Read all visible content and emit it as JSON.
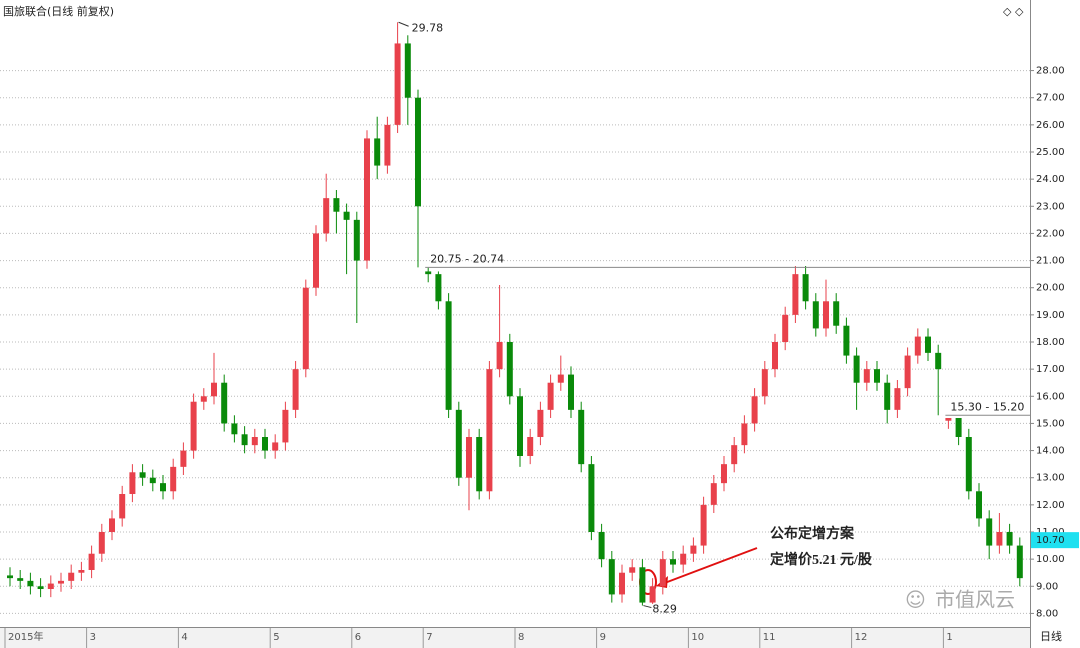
{
  "chart_data": {
    "type": "candlestick",
    "title": "国旅联合(日线 前复权)",
    "categories": [
      "2015年",
      null,
      null,
      null,
      null,
      null,
      null,
      null,
      "3",
      null,
      null,
      null,
      null,
      null,
      null,
      null,
      null,
      "4",
      null,
      null,
      null,
      null,
      null,
      null,
      null,
      null,
      "5",
      null,
      null,
      null,
      null,
      null,
      null,
      null,
      "6",
      null,
      null,
      null,
      null,
      null,
      null,
      "7",
      null,
      null,
      null,
      null,
      null,
      null,
      null,
      null,
      "8",
      null,
      null,
      null,
      null,
      null,
      null,
      null,
      "9",
      null,
      null,
      null,
      null,
      null,
      null,
      null,
      null,
      "10",
      null,
      null,
      null,
      null,
      null,
      null,
      "11",
      null,
      null,
      null,
      null,
      null,
      null,
      null,
      null,
      "12",
      null,
      null,
      null,
      null,
      null,
      null,
      null,
      null,
      "1",
      null,
      null,
      null,
      null,
      null,
      null,
      null
    ],
    "open": [
      9.4,
      9.3,
      9.2,
      9.0,
      8.9,
      9.1,
      9.2,
      9.5,
      9.6,
      10.2,
      11.0,
      11.5,
      12.4,
      13.2,
      13.0,
      12.8,
      12.5,
      13.4,
      14.0,
      15.8,
      16.0,
      16.5,
      15.0,
      14.6,
      14.2,
      14.5,
      14.0,
      14.3,
      15.5,
      17.0,
      20.0,
      22.0,
      23.3,
      22.8,
      22.5,
      21.0,
      25.5,
      24.5,
      26.0,
      29.0,
      27.0,
      20.6,
      20.5,
      19.5,
      15.5,
      13.0,
      14.5,
      12.5,
      17.0,
      18.0,
      16.0,
      13.8,
      14.5,
      15.5,
      16.5,
      16.8,
      15.5,
      13.5,
      11.0,
      10.0,
      8.7,
      9.5,
      9.7,
      8.4,
      9.0,
      10.0,
      9.8,
      10.2,
      10.5,
      12.0,
      12.8,
      13.5,
      14.2,
      15.0,
      16.0,
      17.0,
      18.0,
      19.0,
      20.5,
      19.5,
      18.5,
      19.5,
      18.6,
      17.5,
      16.5,
      17.0,
      16.5,
      15.5,
      16.3,
      17.5,
      18.2,
      17.6,
      15.1,
      15.2,
      14.5,
      12.5,
      11.5,
      10.5,
      11.0,
      10.5
    ],
    "high": [
      9.7,
      9.6,
      9.5,
      9.3,
      9.4,
      9.5,
      9.8,
      9.9,
      10.5,
      11.3,
      11.8,
      12.7,
      13.5,
      13.5,
      13.3,
      13.1,
      13.7,
      14.3,
      16.1,
      16.3,
      17.6,
      16.8,
      15.3,
      14.9,
      14.8,
      14.8,
      14.6,
      15.8,
      17.3,
      20.3,
      22.3,
      24.2,
      23.6,
      23.1,
      22.8,
      25.8,
      26.3,
      26.3,
      29.78,
      29.3,
      27.3,
      20.74,
      20.6,
      19.8,
      15.8,
      14.8,
      14.8,
      17.3,
      20.1,
      18.3,
      16.3,
      14.8,
      15.8,
      16.8,
      17.5,
      17.1,
      15.8,
      13.8,
      11.3,
      10.3,
      9.8,
      10.0,
      10.0,
      9.3,
      10.3,
      10.3,
      10.5,
      10.8,
      12.3,
      13.1,
      13.8,
      14.5,
      15.3,
      16.3,
      17.3,
      18.3,
      19.3,
      20.8,
      20.8,
      19.8,
      20.3,
      19.8,
      18.9,
      17.8,
      17.3,
      17.3,
      16.8,
      16.6,
      17.8,
      18.5,
      18.5,
      17.9,
      15.2,
      15.2,
      14.8,
      12.8,
      11.8,
      11.7,
      11.3,
      10.8
    ],
    "low": [
      9.0,
      8.9,
      8.7,
      8.6,
      8.6,
      8.8,
      8.9,
      9.2,
      9.3,
      9.9,
      10.7,
      11.2,
      12.1,
      12.7,
      12.5,
      12.2,
      12.2,
      13.1,
      13.7,
      15.5,
      15.7,
      14.7,
      14.3,
      13.9,
      13.9,
      13.7,
      13.7,
      14.0,
      15.2,
      16.7,
      19.7,
      21.7,
      22.0,
      20.5,
      18.7,
      20.7,
      24.0,
      24.2,
      25.7,
      26.0,
      20.75,
      20.2,
      19.2,
      15.2,
      12.7,
      11.8,
      12.2,
      12.2,
      16.7,
      15.7,
      13.4,
      13.5,
      14.2,
      15.2,
      16.2,
      15.2,
      13.2,
      10.7,
      9.7,
      8.4,
      8.4,
      9.2,
      8.29,
      8.35,
      8.7,
      9.5,
      9.5,
      9.9,
      10.2,
      11.7,
      12.5,
      13.2,
      13.9,
      14.7,
      15.7,
      16.7,
      17.7,
      18.7,
      19.2,
      18.2,
      18.2,
      18.3,
      17.2,
      15.5,
      16.2,
      16.2,
      15.0,
      15.2,
      16.0,
      17.2,
      17.3,
      15.3,
      14.8,
      14.2,
      12.2,
      11.2,
      10.0,
      10.2,
      10.2,
      9.0
    ],
    "close": [
      9.3,
      9.2,
      9.0,
      8.9,
      9.1,
      9.2,
      9.5,
      9.6,
      10.2,
      11.0,
      11.5,
      12.4,
      13.2,
      13.0,
      12.8,
      12.5,
      13.4,
      14.0,
      15.8,
      16.0,
      16.5,
      15.0,
      14.6,
      14.2,
      14.5,
      14.0,
      14.3,
      15.5,
      17.0,
      20.0,
      22.0,
      23.3,
      22.8,
      22.5,
      21.0,
      25.5,
      24.5,
      26.0,
      29.0,
      27.0,
      23.0,
      20.5,
      19.5,
      15.5,
      13.0,
      14.5,
      12.5,
      17.0,
      18.0,
      16.0,
      13.8,
      14.5,
      15.5,
      16.5,
      16.8,
      15.5,
      13.5,
      11.0,
      10.0,
      8.7,
      9.5,
      9.7,
      8.4,
      9.0,
      10.0,
      9.8,
      10.2,
      10.5,
      12.0,
      12.8,
      13.5,
      14.2,
      15.0,
      16.0,
      17.0,
      18.0,
      19.0,
      20.5,
      19.5,
      18.5,
      19.5,
      18.6,
      17.5,
      16.5,
      17.0,
      16.5,
      15.5,
      16.3,
      17.5,
      18.2,
      17.6,
      17.0,
      15.2,
      14.5,
      12.5,
      11.5,
      10.5,
      11.0,
      10.5,
      9.3
    ],
    "up_color": "#e8414b",
    "down_color": "#0a8a0a",
    "ylim": [
      7.5,
      30.6
    ],
    "yticks": [
      {
        "value": 8,
        "label": "8.00"
      },
      {
        "value": 9,
        "label": "9.00"
      },
      {
        "value": 10,
        "label": "10.00"
      },
      {
        "value": 11,
        "label": "11.00"
      },
      {
        "value": 12,
        "label": "12.00"
      },
      {
        "value": 13,
        "label": "13.00"
      },
      {
        "value": 14,
        "label": "14.00"
      },
      {
        "value": 15,
        "label": "15.00"
      },
      {
        "value": 16,
        "label": "16.00"
      },
      {
        "value": 17,
        "label": "17.00"
      },
      {
        "value": 18,
        "label": "18.00"
      },
      {
        "value": 19,
        "label": "19.00"
      },
      {
        "value": 20,
        "label": "20.00"
      },
      {
        "value": 21,
        "label": "21.00"
      },
      {
        "value": 22,
        "label": "22.00"
      },
      {
        "value": 23,
        "label": "23.00"
      },
      {
        "value": 24,
        "label": "24.00"
      },
      {
        "value": 25,
        "label": "25.00"
      },
      {
        "value": 26,
        "label": "26.00"
      },
      {
        "value": 27,
        "label": "27.00"
      },
      {
        "value": 28,
        "label": "28.00"
      }
    ],
    "grid": true,
    "gap_labels": [
      "20.75 - 20.74",
      "15.30 - 15.20"
    ],
    "price_marker": {
      "value": 10.7,
      "label": "10.70"
    },
    "annotation_lines": [
      "公布定增方案",
      "定增价5.21 元/股"
    ],
    "period_label": "日线",
    "watermark": "市值风云"
  }
}
